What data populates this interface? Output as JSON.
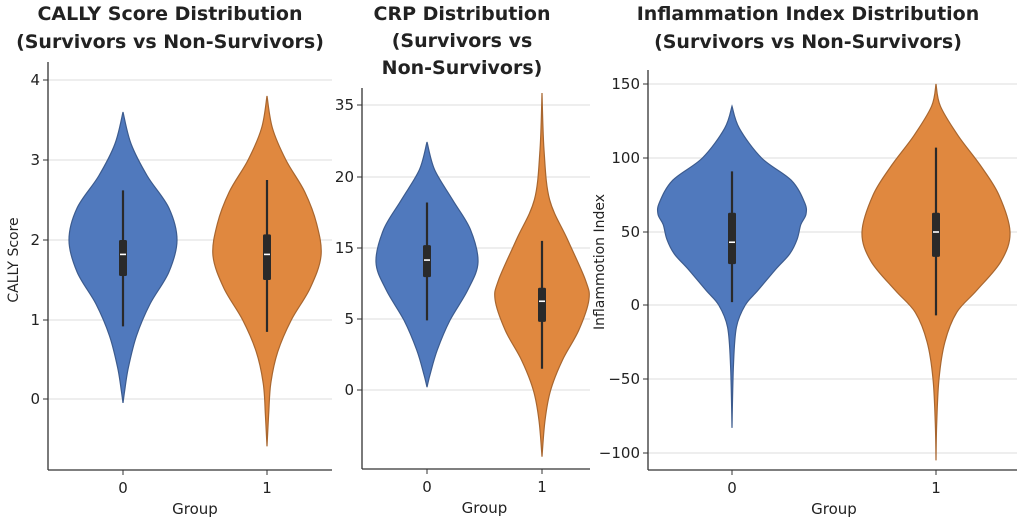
{
  "chart_data": [
    {
      "type": "violin",
      "title": [
        "CALLY Score Distribution",
        "(Survivors vs Non-Survivors)"
      ],
      "xlabel": "Group",
      "ylabel": "CALLY Score",
      "categories": [
        "0",
        "1"
      ],
      "yticks": [
        0,
        1,
        2,
        3,
        4
      ],
      "ytick_labels": [
        "0",
        "1",
        "2",
        "3",
        "4"
      ],
      "grid": true,
      "colors": [
        "#5079bd",
        "#e0883f"
      ],
      "series": [
        {
          "name": "0",
          "profile": [
            [
              3.6,
              0
            ],
            [
              3.2,
              0.15
            ],
            [
              2.8,
              0.45
            ],
            [
              2.4,
              0.85
            ],
            [
              2.0,
              1.0
            ],
            [
              1.6,
              0.85
            ],
            [
              1.2,
              0.5
            ],
            [
              0.8,
              0.25
            ],
            [
              0.4,
              0.1
            ],
            [
              0.1,
              0.03
            ],
            [
              -0.05,
              0
            ]
          ],
          "whisker_low": 0.92,
          "q1": 1.55,
          "median": 1.82,
          "q3": 2.0,
          "whisker_high": 2.62
        },
        {
          "name": "1",
          "profile": [
            [
              3.8,
              0
            ],
            [
              3.4,
              0.1
            ],
            [
              3.0,
              0.35
            ],
            [
              2.6,
              0.7
            ],
            [
              2.2,
              0.92
            ],
            [
              1.8,
              1.0
            ],
            [
              1.4,
              0.8
            ],
            [
              1.0,
              0.45
            ],
            [
              0.6,
              0.2
            ],
            [
              0.2,
              0.07
            ],
            [
              -0.2,
              0.03
            ],
            [
              -0.6,
              0
            ]
          ],
          "whisker_low": 0.85,
          "q1": 1.5,
          "median": 1.82,
          "q3": 2.07,
          "whisker_high": 2.75
        }
      ]
    },
    {
      "type": "violin",
      "title": [
        "CRP Distribution",
        "(Survivors vs",
        "Non-Survivors)"
      ],
      "xlabel": "Group",
      "ylabel": "",
      "categories": [
        "0",
        "1"
      ],
      "yticks": [
        0,
        5,
        15,
        20,
        35
      ],
      "ytick_labels": [
        "0",
        "5",
        "15",
        "20",
        "35"
      ],
      "grid": true,
      "colors": [
        "#5079bd",
        "#e0883f"
      ],
      "series": [
        {
          "name": "0",
          "profile": [
            [
              27.3,
              0
            ],
            [
              21.5,
              0.15
            ],
            [
              18.4,
              0.5
            ],
            [
              16.3,
              0.85
            ],
            [
              13.0,
              1.0
            ],
            [
              9.1,
              0.8
            ],
            [
              4.9,
              0.45
            ],
            [
              2.8,
              0.2
            ],
            [
              1.1,
              0.06
            ],
            [
              0.2,
              0
            ]
          ],
          "whisker_low": 4.9,
          "q1": 10.9,
          "median": 13.3,
          "q3": 15.2,
          "whisker_high": 18.2
        },
        {
          "name": "1",
          "profile": [
            [
              37.5,
              0
            ],
            [
              25.6,
              0.04
            ],
            [
              18.4,
              0.15
            ],
            [
              15.6,
              0.5
            ],
            [
              10.5,
              0.85
            ],
            [
              7.7,
              0.92
            ],
            [
              4.2,
              0.72
            ],
            [
              2.1,
              0.4
            ],
            [
              0,
              0.17
            ],
            [
              -2.1,
              0.06
            ],
            [
              -4.7,
              0
            ]
          ],
          "whisker_low": 1.5,
          "q1": 4.8,
          "median": 7.5,
          "q3": 9.4,
          "whisker_high": 15.5
        }
      ]
    },
    {
      "type": "violin",
      "title": [
        "Inflammation Index Distribution",
        "(Survivors vs Non-Survivors)"
      ],
      "xlabel": "Group",
      "ylabel": "Inflammotion Index",
      "categories": [
        "0",
        "1"
      ],
      "yticks": [
        -100,
        -50,
        0,
        50,
        100,
        150
      ],
      "ytick_labels": [
        "−100",
        "−50",
        "0",
        "50",
        "100",
        "150"
      ],
      "grid": true,
      "colors": [
        "#5079bd",
        "#e0883f"
      ],
      "series": [
        {
          "name": "0",
          "profile": [
            [
              135,
              0
            ],
            [
              120,
              0.1
            ],
            [
              100,
              0.4
            ],
            [
              85,
              0.8
            ],
            [
              70,
              0.98
            ],
            [
              62,
              1.0
            ],
            [
              55,
              0.93
            ],
            [
              45,
              0.88
            ],
            [
              35,
              0.78
            ],
            [
              25,
              0.6
            ],
            [
              10,
              0.35
            ],
            [
              0,
              0.18
            ],
            [
              -15,
              0.06
            ],
            [
              -40,
              0.02
            ],
            [
              -83,
              0
            ]
          ],
          "whisker_low": 2,
          "q1": 28,
          "median": 43,
          "q3": 63,
          "whisker_high": 91
        },
        {
          "name": "1",
          "profile": [
            [
              150,
              0
            ],
            [
              135,
              0.06
            ],
            [
              115,
              0.3
            ],
            [
              95,
              0.6
            ],
            [
              75,
              0.85
            ],
            [
              50,
              1.0
            ],
            [
              30,
              0.88
            ],
            [
              10,
              0.55
            ],
            [
              -5,
              0.28
            ],
            [
              -25,
              0.12
            ],
            [
              -50,
              0.04
            ],
            [
              -80,
              0.01
            ],
            [
              -105,
              0
            ]
          ],
          "whisker_low": -7,
          "q1": 33,
          "median": 50,
          "q3": 63,
          "whisker_high": 107
        }
      ]
    }
  ]
}
